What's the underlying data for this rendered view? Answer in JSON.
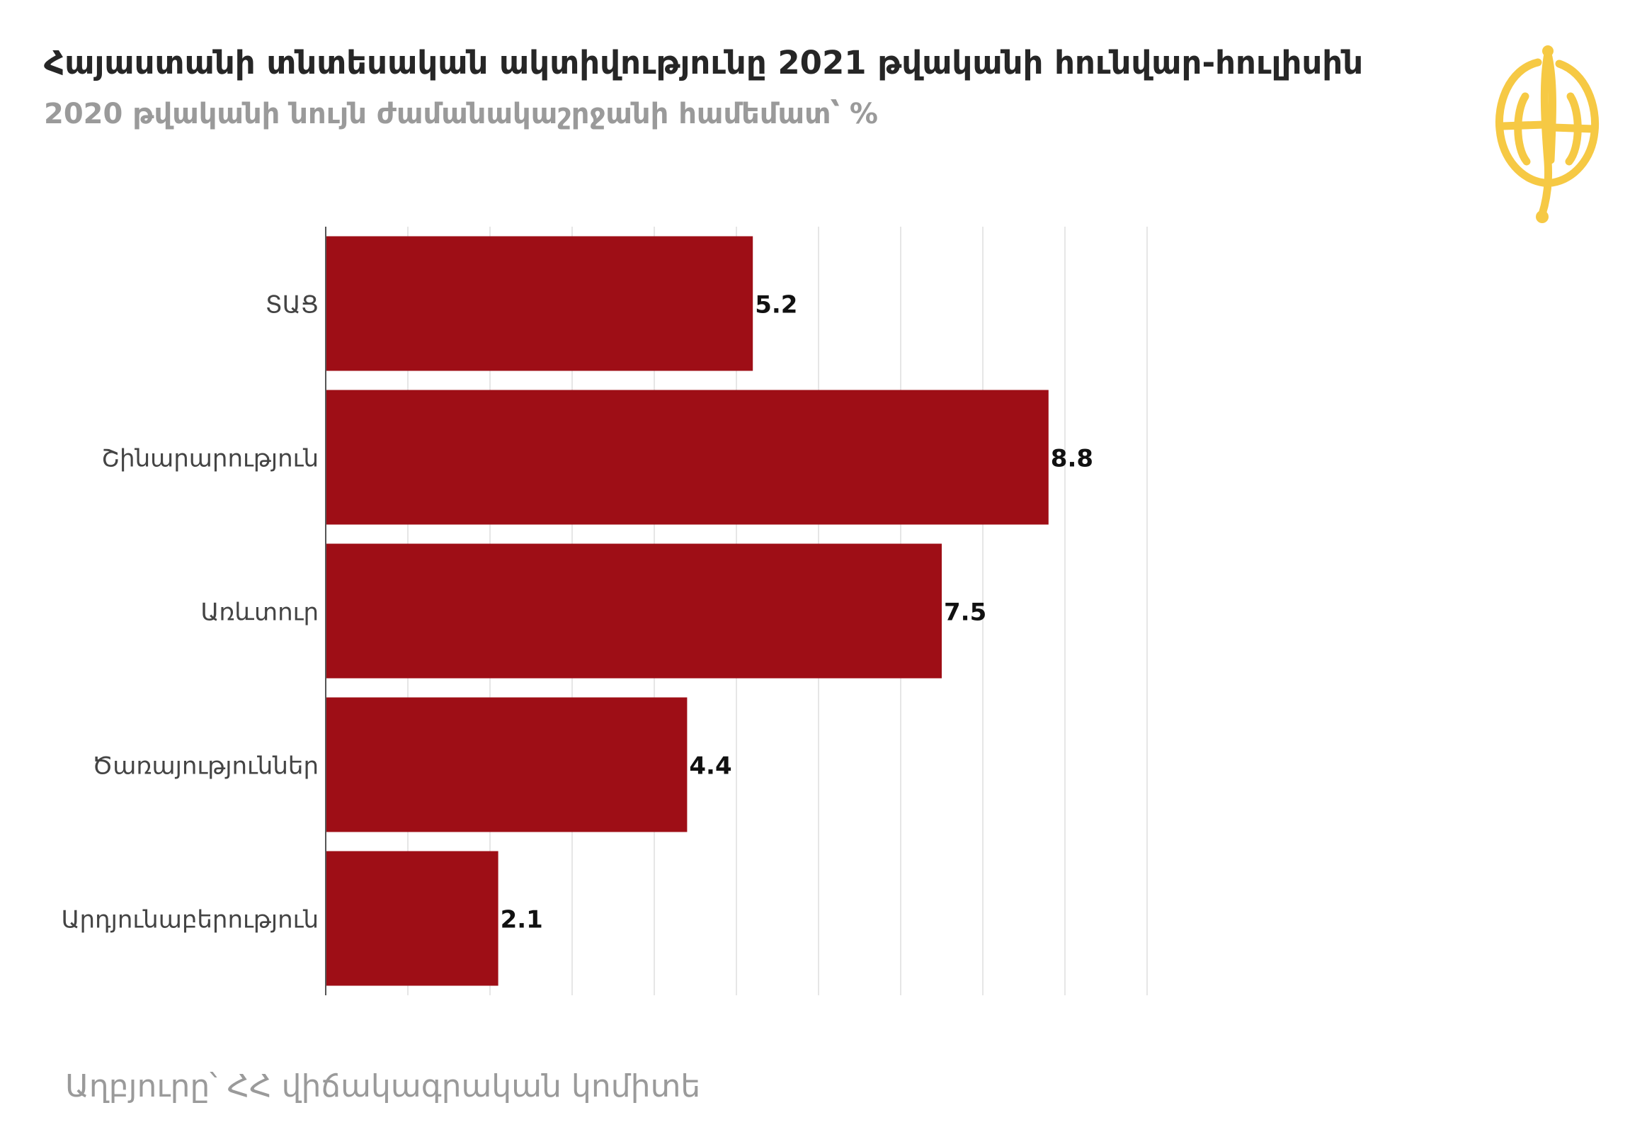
{
  "title": "Հայաստանի տնտեսական ակտիվությունը 2021 թվականի հունվար-հուլիսին",
  "subtitle": "2020 թվականի նույն ժամանակաշրջանի համեմատ՝ %",
  "source": "Աղբյուրը՝ ՀՀ վիճակագրական կոմիտե",
  "colors": {
    "bar": "#9e0e16",
    "logo": "#f6c944",
    "grid": "#e6e6e6",
    "axis": "#555555"
  },
  "chart_data": {
    "type": "bar",
    "orientation": "horizontal",
    "categories": [
      "ՏԱՑ",
      "Շինարարություն",
      "Առևտուր",
      "Ծառայություններ",
      "Արդյունաբերություն"
    ],
    "values": [
      5.2,
      8.8,
      7.5,
      4.4,
      2.1
    ],
    "xlim": [
      0,
      10
    ],
    "grid": true,
    "data_labels": true
  }
}
